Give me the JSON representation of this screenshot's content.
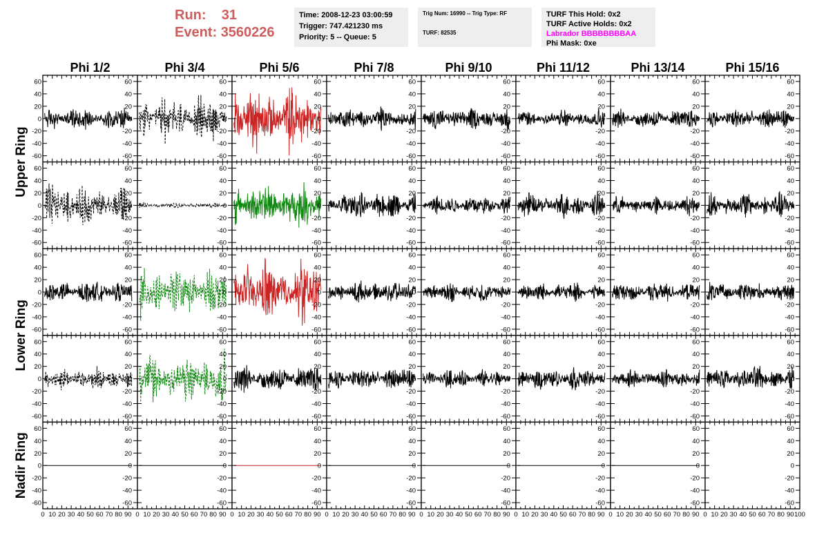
{
  "header": {
    "run_label": "Run:",
    "run_value": "31",
    "event_label": "Event:",
    "event_value": "3560226"
  },
  "info1": {
    "time": "Time: 2008-12-23 03:00:59",
    "trigger": "Trigger: 747.421230 ms",
    "priority": "Priority: 5 -- Queue: 5"
  },
  "info2": {
    "trig_line": "Trig Num: 16990 -- Trig Type: RF",
    "turf_line": "TURF: 82535"
  },
  "info3": {
    "this_hold": "TURF This Hold: 0x2",
    "active_holds": "TURF Active Holds: 0x2",
    "labrador": "Labrador BBBBBBBBAA",
    "phi_mask": "Phi Mask: 0xe"
  },
  "chart_data": {
    "type": "line",
    "columns": [
      "Phi 1/2",
      "Phi 3/4",
      "Phi 5/6",
      "Phi 7/8",
      "Phi 9/10",
      "Phi 11/12",
      "Phi 13/14",
      "Phi 15/16"
    ],
    "row_groups": [
      {
        "label": "Upper Ring",
        "rows": [
          0,
          1
        ]
      },
      {
        "label": "Lower Ring",
        "rows": [
          2,
          3
        ]
      },
      {
        "label": "Nadir Ring",
        "rows": [
          4
        ]
      }
    ],
    "xlim": [
      0,
      100
    ],
    "ylim": [
      -70,
      70
    ],
    "x_ticks": [
      0,
      10,
      20,
      30,
      40,
      50,
      60,
      70,
      80,
      90,
      100
    ],
    "y_ticks": [
      -60,
      -40,
      -20,
      0,
      20,
      40,
      60
    ],
    "colors": {
      "black": "#000000",
      "red": "#cc2222",
      "green": "#118811"
    },
    "panels": [
      [
        {
          "color": "black",
          "dashed": false,
          "amp": 18
        },
        {
          "color": "black",
          "dashed": true,
          "amp": 32
        },
        {
          "color": "red",
          "dashed": false,
          "amp": 45
        },
        {
          "color": "black",
          "dashed": false,
          "amp": 18
        },
        {
          "color": "black",
          "dashed": false,
          "amp": 18
        },
        {
          "color": "black",
          "dashed": false,
          "amp": 15
        },
        {
          "color": "black",
          "dashed": false,
          "amp": 16
        },
        {
          "color": "black",
          "dashed": false,
          "amp": 18
        }
      ],
      [
        {
          "color": "black",
          "dashed": true,
          "amp": 30
        },
        {
          "color": "black",
          "dashed": true,
          "amp": 4
        },
        {
          "color": "green",
          "dashed": false,
          "amp": 30
        },
        {
          "color": "black",
          "dashed": false,
          "amp": 22
        },
        {
          "color": "black",
          "dashed": false,
          "amp": 16
        },
        {
          "color": "black",
          "dashed": false,
          "amp": 20
        },
        {
          "color": "black",
          "dashed": false,
          "amp": 15
        },
        {
          "color": "black",
          "dashed": false,
          "amp": 20
        }
      ],
      [
        {
          "color": "black",
          "dashed": false,
          "amp": 18
        },
        {
          "color": "green",
          "dashed": true,
          "amp": 35
        },
        {
          "color": "red",
          "dashed": false,
          "amp": 45
        },
        {
          "color": "black",
          "dashed": false,
          "amp": 18
        },
        {
          "color": "black",
          "dashed": false,
          "amp": 16
        },
        {
          "color": "black",
          "dashed": false,
          "amp": 15
        },
        {
          "color": "black",
          "dashed": false,
          "amp": 16
        },
        {
          "color": "black",
          "dashed": false,
          "amp": 16
        }
      ],
      [
        {
          "color": "black",
          "dashed": true,
          "amp": 18
        },
        {
          "color": "green",
          "dashed": true,
          "amp": 40
        },
        {
          "color": "black",
          "dashed": false,
          "amp": 22
        },
        {
          "color": "black",
          "dashed": false,
          "amp": 20
        },
        {
          "color": "black",
          "dashed": false,
          "amp": 15
        },
        {
          "color": "black",
          "dashed": false,
          "amp": 18
        },
        {
          "color": "black",
          "dashed": false,
          "amp": 15
        },
        {
          "color": "black",
          "dashed": false,
          "amp": 20
        }
      ],
      [
        {
          "color": "black",
          "dashed": false,
          "amp": 0
        },
        {
          "color": "black",
          "dashed": false,
          "amp": 0
        },
        {
          "color": "red",
          "dashed": false,
          "amp": 0
        },
        {
          "color": "black",
          "dashed": false,
          "amp": 0
        },
        {
          "color": "black",
          "dashed": false,
          "amp": 0
        },
        {
          "color": "black",
          "dashed": false,
          "amp": 0
        },
        {
          "color": "black",
          "dashed": false,
          "amp": 0
        },
        {
          "color": "none",
          "dashed": false,
          "amp": 0
        }
      ]
    ]
  }
}
